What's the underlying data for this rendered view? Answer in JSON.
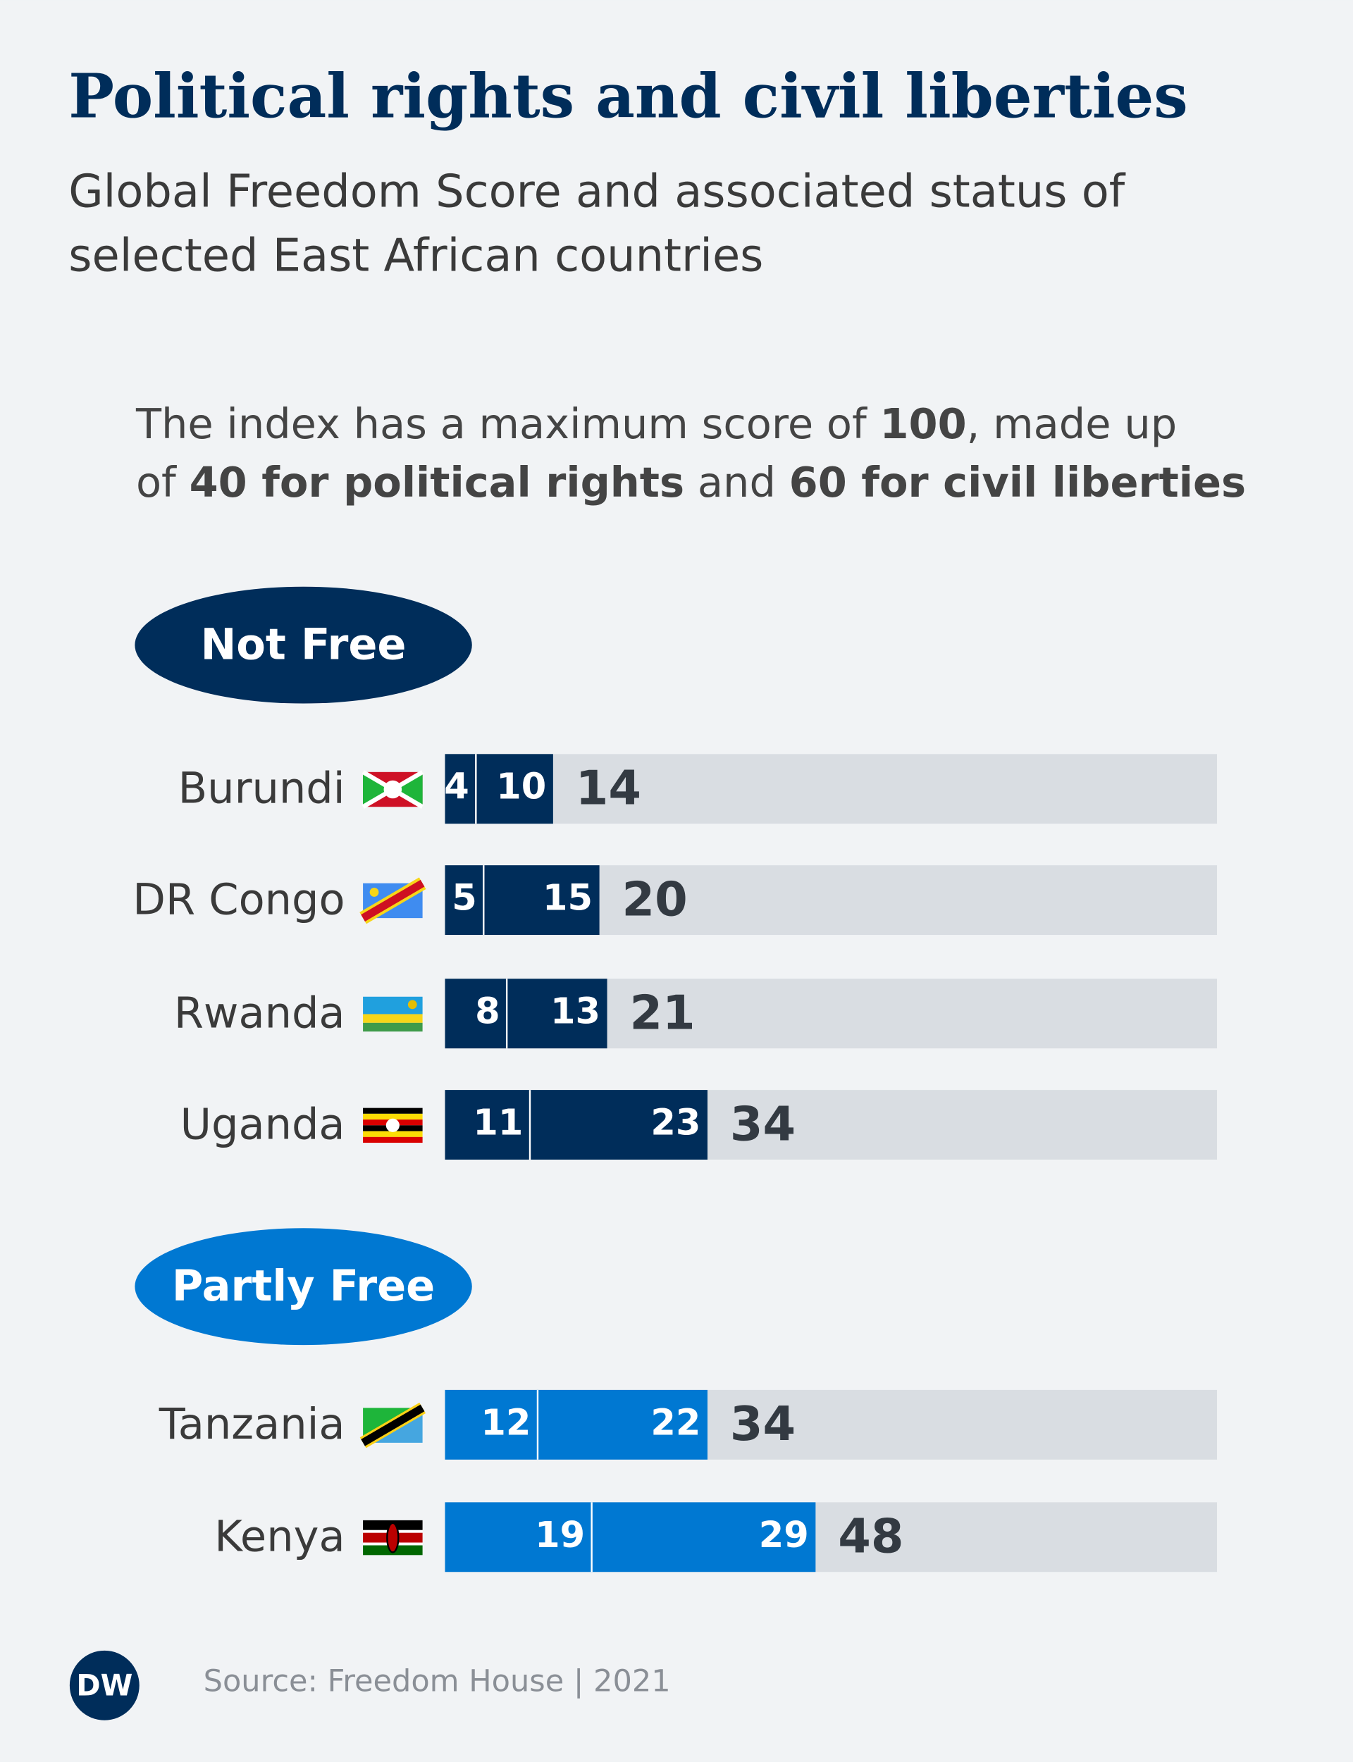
{
  "chart_data": {
    "type": "bar",
    "title": "Political rights and civil liberties",
    "subtitle": [
      "Global Freedom Score and associated status of",
      "selected East African countries"
    ],
    "note": [
      [
        "The index has a maximum score of ",
        "100",
        ", made up"
      ],
      [
        "of ",
        "40 for political rights",
        " and ",
        "60 for civil liberties"
      ]
    ],
    "xlim": [
      0,
      100
    ],
    "background_color": "#d9dde2",
    "groups": [
      {
        "name": "Not Free",
        "color": "#002d5a",
        "categories": [
          "Burundi",
          "DR Congo",
          "Rwanda",
          "Uganda"
        ],
        "series": [
          {
            "values": [
              4,
              5,
              8,
              11
            ]
          },
          {
            "values": [
              10,
              15,
              13,
              23
            ]
          }
        ],
        "totals": [
          14,
          20,
          21,
          34
        ]
      },
      {
        "name": "Partly Free",
        "color": "#0078d2",
        "categories": [
          "Tanzania",
          "Kenya"
        ],
        "series": [
          {
            "values": [
              12,
              19
            ]
          },
          {
            "values": [
              22,
              29
            ]
          }
        ],
        "totals": [
          34,
          48
        ]
      }
    ],
    "source": "Source: Freedom House | 2021",
    "logo": "DW"
  }
}
